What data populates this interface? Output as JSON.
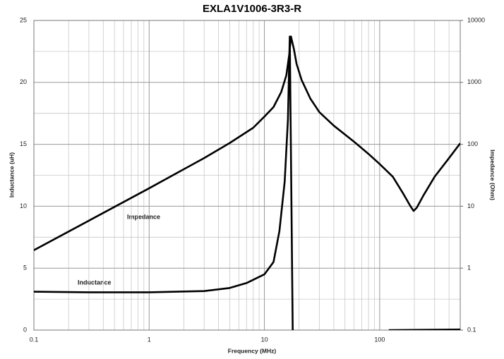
{
  "chart_data": {
    "type": "line",
    "title": "EXLA1V1006-3R3-R",
    "xlabel": "Frequency (MHz)",
    "ylabel": "Inductance (uH)",
    "y2label": "Impedance (Ohm)",
    "xscale": "log",
    "y2scale": "log",
    "grid": true,
    "xlim": [
      0.1,
      500
    ],
    "xticks": [
      0.1,
      1,
      10,
      100
    ],
    "xminorticks": [
      0.2,
      0.3,
      0.4,
      0.5,
      0.6,
      0.7,
      0.8,
      0.9,
      2,
      3,
      4,
      5,
      6,
      7,
      8,
      9,
      20,
      30,
      40,
      50,
      60,
      70,
      80,
      90,
      200,
      300,
      400
    ],
    "ylim": [
      0,
      25
    ],
    "yticks": [
      0,
      5,
      10,
      15,
      20,
      25
    ],
    "yminorticks": [
      2.5,
      7.5,
      12.5,
      17.5,
      22.5
    ],
    "y2lim": [
      0.1,
      10000
    ],
    "y2ticks": [
      0.1,
      1,
      10,
      100,
      1000,
      10000
    ],
    "series": [
      {
        "name": "Inductance",
        "color": "#000000",
        "axis": "y",
        "x": [
          0.1,
          0.3,
          1,
          3,
          5,
          7,
          10,
          12,
          13.5,
          15,
          16,
          16.6,
          17.6,
          50,
          120,
          500
        ],
        "values": [
          3.1,
          3.05,
          3.05,
          3.15,
          3.4,
          3.8,
          4.5,
          5.5,
          8,
          12,
          17,
          23.7,
          0,
          null,
          0,
          0.05
        ]
      },
      {
        "name": "Impedance",
        "color": "#000000",
        "axis": "y2",
        "x": [
          0.1,
          1,
          3,
          5,
          8,
          10,
          12,
          14,
          15.5,
          16.5,
          17,
          18,
          19,
          21,
          25,
          30,
          40,
          60,
          80,
          100,
          130,
          160,
          185,
          197,
          210,
          240,
          300,
          400,
          500
        ],
        "values": [
          1.95,
          19.5,
          60,
          105,
          185,
          280,
          400,
          700,
          1300,
          3000,
          5500,
          3500,
          2000,
          1100,
          550,
          330,
          200,
          110,
          70,
          48,
          30,
          16,
          10,
          8.4,
          9.5,
          15,
          30,
          60,
          104
        ]
      }
    ]
  }
}
